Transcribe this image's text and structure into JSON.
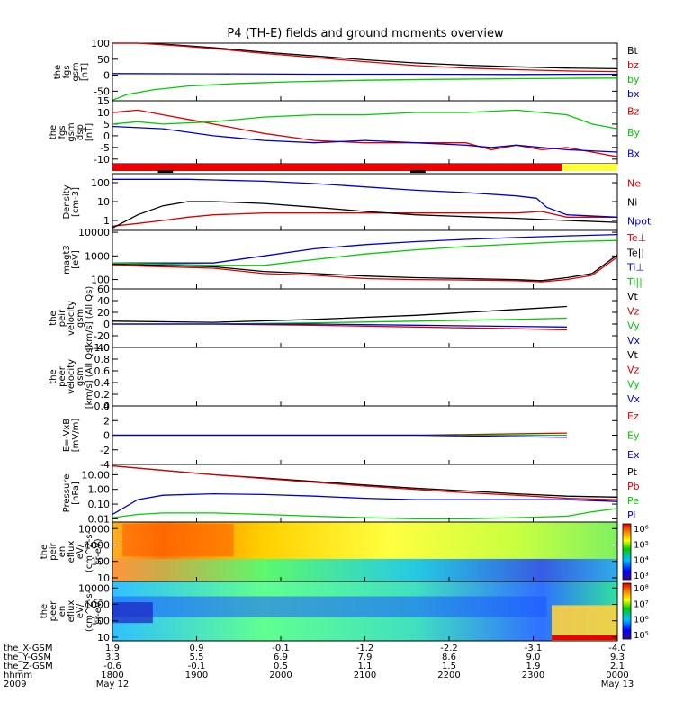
{
  "title": "P4 (TH-E) fields and ground moments overview",
  "chart_data": [
    {
      "type": "line",
      "ylabel": [
        "the",
        "fgs",
        "gsm",
        "[nT]"
      ],
      "ylim": [
        -80,
        100
      ],
      "yticks": [
        "100",
        "50",
        "0",
        "-50"
      ],
      "ytick_values": [
        100,
        50,
        0,
        -50
      ],
      "series": [
        {
          "name": "Bt",
          "color": "#000000",
          "x": [
            0,
            0.05,
            0.12,
            0.2,
            0.3,
            0.4,
            0.5,
            0.6,
            0.7,
            0.8,
            0.9,
            1.0
          ],
          "y": [
            118,
            105,
            95,
            86,
            72,
            60,
            48,
            38,
            31,
            26,
            22,
            20
          ]
        },
        {
          "name": "bz",
          "color": "#dd0000",
          "x": [
            0,
            0.05,
            0.12,
            0.2,
            0.3,
            0.4,
            0.5,
            0.6,
            0.7,
            0.8,
            0.9,
            1.0
          ],
          "y": [
            118,
            104,
            93,
            83,
            68,
            55,
            42,
            30,
            22,
            17,
            13,
            11
          ]
        },
        {
          "name": "by",
          "color": "#00cc00",
          "x": [
            0,
            0.03,
            0.08,
            0.15,
            0.25,
            0.35,
            0.5,
            0.65,
            0.8,
            0.9,
            1.0
          ],
          "y": [
            -78,
            -60,
            -46,
            -34,
            -26,
            -21,
            -16,
            -13,
            -11,
            -10,
            -9
          ]
        },
        {
          "name": "bx",
          "color": "#0000cc",
          "x": [
            0,
            0.2,
            0.4,
            0.6,
            0.8,
            1.0
          ],
          "y": [
            5,
            4,
            3,
            3,
            2,
            3
          ]
        }
      ]
    },
    {
      "type": "line",
      "ylabel": [
        "the",
        "fgs",
        "gsm",
        "dsp",
        "[nT]"
      ],
      "ylim": [
        -12,
        15
      ],
      "yticks": [
        "15",
        "10",
        "5",
        "0",
        "-5",
        "-10"
      ],
      "ytick_values": [
        15,
        10,
        5,
        0,
        -5,
        -10
      ],
      "series": [
        {
          "name": "Bz",
          "color": "#dd0000",
          "x": [
            0,
            0.05,
            0.1,
            0.15,
            0.2,
            0.3,
            0.4,
            0.5,
            0.6,
            0.7,
            0.75,
            0.8,
            0.85,
            0.9,
            0.95,
            1.0
          ],
          "y": [
            10,
            11,
            9,
            7,
            5,
            1,
            -2,
            -3,
            -3,
            -3,
            -6,
            -4,
            -6,
            -5,
            -7,
            -9
          ]
        },
        {
          "name": "By",
          "color": "#00cc00",
          "x": [
            0,
            0.05,
            0.1,
            0.2,
            0.3,
            0.4,
            0.5,
            0.6,
            0.7,
            0.8,
            0.85,
            0.9,
            0.95,
            1.0
          ],
          "y": [
            5,
            6,
            5,
            6,
            8,
            9,
            9,
            10,
            10,
            11,
            10,
            9,
            5,
            3
          ]
        },
        {
          "name": "Bx",
          "color": "#0000cc",
          "x": [
            0,
            0.1,
            0.2,
            0.3,
            0.4,
            0.5,
            0.6,
            0.7,
            0.75,
            0.8,
            0.85,
            0.9,
            1.0
          ],
          "y": [
            4,
            3,
            0,
            -2,
            -3,
            -2,
            -3,
            -4,
            -5,
            -4,
            -5,
            -6,
            -7
          ]
        }
      ]
    },
    {
      "type": "line",
      "yscale": "log",
      "ylabel": [
        "Density",
        "[cm-3]"
      ],
      "ylim": [
        0.3,
        300
      ],
      "yticks": [
        "100",
        "10",
        "1"
      ],
      "ytick_values": [
        100,
        10,
        1
      ],
      "series": [
        {
          "name": "Ne",
          "color": "#dd0000",
          "x": [
            0,
            0.05,
            0.1,
            0.15,
            0.2,
            0.3,
            0.4,
            0.5,
            0.6,
            0.7,
            0.8,
            0.85,
            0.9,
            1.0
          ],
          "y": [
            0.5,
            0.7,
            1,
            1.5,
            2,
            2.5,
            2.5,
            2.5,
            2.5,
            2.5,
            2.5,
            3,
            1.5,
            1.5
          ]
        },
        {
          "name": "Ni",
          "color": "#000000",
          "x": [
            0,
            0.05,
            0.1,
            0.15,
            0.2,
            0.3,
            0.4,
            0.5,
            0.6,
            0.7,
            0.8,
            0.9,
            1.0
          ],
          "y": [
            0.4,
            2,
            6,
            10,
            10,
            8,
            5,
            3,
            2,
            1.6,
            1.3,
            1.0,
            0.8
          ]
        },
        {
          "name": "Npot",
          "color": "#0000cc",
          "x": [
            0,
            0.1,
            0.15,
            0.2,
            0.3,
            0.4,
            0.5,
            0.6,
            0.7,
            0.8,
            0.84,
            0.86,
            0.9,
            1.0
          ],
          "y": [
            150,
            150,
            150,
            140,
            120,
            90,
            60,
            40,
            30,
            20,
            15,
            5,
            2,
            1.5
          ]
        }
      ]
    },
    {
      "type": "line",
      "yscale": "log",
      "ylabel": [
        "magt3",
        "[eV]"
      ],
      "ylim": [
        40,
        12000
      ],
      "yticks": [
        "10000",
        "1000",
        "100"
      ],
      "ytick_values": [
        10000,
        1000,
        100
      ],
      "series": [
        {
          "name": "Te⊥",
          "color": "#dd0000",
          "x": [
            0,
            0.1,
            0.2,
            0.3,
            0.4,
            0.5,
            0.6,
            0.7,
            0.8,
            0.85,
            0.9,
            0.95,
            1.0
          ],
          "y": [
            400,
            350,
            300,
            180,
            150,
            110,
            100,
            95,
            90,
            80,
            100,
            150,
            900
          ]
        },
        {
          "name": "Te||",
          "color": "#000000",
          "x": [
            0,
            0.1,
            0.2,
            0.3,
            0.4,
            0.5,
            0.6,
            0.7,
            0.8,
            0.85,
            0.9,
            0.95,
            1.0
          ],
          "y": [
            450,
            400,
            350,
            220,
            180,
            140,
            120,
            110,
            100,
            90,
            120,
            180,
            1100
          ]
        },
        {
          "name": "Ti⊥",
          "color": "#0000cc",
          "x": [
            0,
            0.1,
            0.2,
            0.3,
            0.4,
            0.5,
            0.6,
            0.7,
            0.8,
            0.9,
            1.0
          ],
          "y": [
            500,
            500,
            500,
            1000,
            2000,
            3000,
            4000,
            5000,
            6000,
            7000,
            8000
          ]
        },
        {
          "name": "Ti||",
          "color": "#00cc00",
          "x": [
            0,
            0.1,
            0.2,
            0.3,
            0.4,
            0.5,
            0.6,
            0.7,
            0.8,
            0.9,
            1.0
          ],
          "y": [
            500,
            450,
            400,
            400,
            700,
            1200,
            1800,
            2500,
            3200,
            4000,
            4500
          ]
        }
      ]
    },
    {
      "type": "line",
      "ylabel": [
        "the",
        "peir",
        "velocity",
        "gsm",
        "[km/s] (All Qs)"
      ],
      "ylim": [
        -40,
        60
      ],
      "yticks": [
        "60",
        "40",
        "20",
        "0",
        "-20",
        "-40"
      ],
      "ytick_values": [
        60,
        40,
        20,
        0,
        -20,
        -40
      ],
      "series": [
        {
          "name": "Vt",
          "color": "#000000",
          "x": [
            0,
            0.2,
            0.4,
            0.6,
            0.8,
            0.9
          ],
          "y": [
            5,
            3,
            8,
            15,
            25,
            30
          ]
        },
        {
          "name": "Vz",
          "color": "#dd0000",
          "x": [
            0,
            0.2,
            0.4,
            0.6,
            0.8,
            0.9
          ],
          "y": [
            0,
            0,
            -2,
            -5,
            -8,
            -10
          ]
        },
        {
          "name": "Vy",
          "color": "#00cc00",
          "x": [
            0,
            0.2,
            0.4,
            0.6,
            0.8,
            0.9
          ],
          "y": [
            0,
            0,
            2,
            5,
            8,
            10
          ]
        },
        {
          "name": "Vx",
          "color": "#0000cc",
          "x": [
            0,
            0.2,
            0.4,
            0.6,
            0.8,
            0.9
          ],
          "y": [
            0,
            0,
            0,
            -2,
            -4,
            -5
          ]
        }
      ]
    },
    {
      "type": "line",
      "ylabel": [
        "the",
        "peer",
        "velocity",
        "gsm",
        "[km/s] (All Qs)"
      ],
      "ylim": [
        0,
        1
      ],
      "yticks": [
        "1.0",
        "0.8",
        "0.6",
        "0.4",
        "0.2",
        "0.0"
      ],
      "ytick_values": [
        1.0,
        0.8,
        0.6,
        0.4,
        0.2,
        0.0
      ],
      "series": [
        {
          "name": "Vt",
          "color": "#000000",
          "x": [],
          "y": []
        },
        {
          "name": "Vz",
          "color": "#dd0000",
          "x": [],
          "y": []
        },
        {
          "name": "Vy",
          "color": "#00cc00",
          "x": [],
          "y": []
        },
        {
          "name": "Vx",
          "color": "#0000cc",
          "x": [],
          "y": []
        }
      ]
    },
    {
      "type": "line",
      "ylabel": [
        "E=-VxB",
        "[mV/m]"
      ],
      "ylim": [
        -4,
        4
      ],
      "yticks": [
        "4",
        "2",
        "0",
        "-2",
        "-4"
      ],
      "ytick_values": [
        4,
        2,
        0,
        -2,
        -4
      ],
      "series": [
        {
          "name": "Ez",
          "color": "#dd0000",
          "x": [
            0,
            0.1,
            0.2,
            0.4,
            0.6,
            0.8,
            0.9
          ],
          "y": [
            0,
            0,
            0,
            0,
            0,
            0.2,
            0.3
          ]
        },
        {
          "name": "Ey",
          "color": "#00cc00",
          "x": [
            0,
            0.1,
            0.2,
            0.4,
            0.6,
            0.8,
            0.9
          ],
          "y": [
            0,
            0,
            0,
            0,
            0,
            0,
            0
          ]
        },
        {
          "name": "Ex",
          "color": "#0000cc",
          "x": [
            0,
            0.1,
            0.2,
            0.4,
            0.6,
            0.8,
            0.9
          ],
          "y": [
            0,
            0,
            0,
            0,
            0,
            -0.2,
            -0.3
          ]
        }
      ]
    },
    {
      "type": "line",
      "yscale": "log",
      "ylabel": [
        "Pressure",
        "[nPa]"
      ],
      "ylim": [
        0.006,
        50
      ],
      "yticks": [
        "10.00",
        "1.00",
        "0.10",
        "0.01"
      ],
      "ytick_values": [
        10,
        1,
        0.1,
        0.01
      ],
      "series": [
        {
          "name": "Pt",
          "color": "#000000",
          "x": [
            0,
            0.1,
            0.2,
            0.3,
            0.4,
            0.5,
            0.6,
            0.7,
            0.8,
            0.9,
            1.0
          ],
          "y": [
            40,
            20,
            10,
            6,
            3.5,
            2,
            1.2,
            0.8,
            0.5,
            0.35,
            0.3
          ]
        },
        {
          "name": "Pb",
          "color": "#dd0000",
          "x": [
            0,
            0.1,
            0.2,
            0.3,
            0.4,
            0.5,
            0.6,
            0.7,
            0.8,
            0.9,
            1.0
          ],
          "y": [
            40,
            20,
            10,
            5.5,
            3,
            1.7,
            1.0,
            0.6,
            0.4,
            0.25,
            0.2
          ]
        },
        {
          "name": "Pe",
          "color": "#00cc00",
          "x": [
            0,
            0.05,
            0.1,
            0.2,
            0.3,
            0.4,
            0.5,
            0.6,
            0.7,
            0.8,
            0.9,
            0.95,
            1.0
          ],
          "y": [
            0.012,
            0.02,
            0.025,
            0.025,
            0.02,
            0.015,
            0.012,
            0.01,
            0.01,
            0.012,
            0.015,
            0.03,
            0.05
          ]
        },
        {
          "name": "Pi",
          "color": "#0000cc",
          "x": [
            0,
            0.05,
            0.1,
            0.2,
            0.3,
            0.4,
            0.5,
            0.6,
            0.7,
            0.8,
            0.9,
            1.0
          ],
          "y": [
            0.02,
            0.2,
            0.4,
            0.5,
            0.45,
            0.35,
            0.25,
            0.2,
            0.2,
            0.2,
            0.2,
            0.15
          ]
        }
      ]
    },
    {
      "type": "heatmap",
      "ylabel": [
        "the",
        "peir",
        "en",
        "eflux",
        "eV/",
        "(cm^2-s-",
        "sr-eV)"
      ],
      "yscale": "log",
      "ylim": [
        6,
        25000
      ],
      "yticks": [
        "10000",
        "1000",
        "100",
        "10"
      ],
      "ytick_values": [
        10000,
        1000,
        100,
        10
      ],
      "colorbar_ticks": [
        "10^6",
        "10^5",
        "10^4",
        "10^3"
      ],
      "colorbar_values": [
        1000000,
        100000,
        10000,
        1000
      ],
      "colorbar_range": [
        500,
        2000000
      ]
    },
    {
      "type": "heatmap",
      "ylabel": [
        "the",
        "peer",
        "en",
        "eflux",
        "eV/",
        "(cm^2-s-",
        "sr-eV)"
      ],
      "yscale": "log",
      "ylim": [
        6,
        25000
      ],
      "yticks": [
        "10000",
        "1000",
        "100",
        "10"
      ],
      "ytick_values": [
        10000,
        1000,
        100,
        10
      ],
      "colorbar_ticks": [
        "10^8",
        "10^7",
        "10^6",
        "10^5"
      ],
      "colorbar_values": [
        100000000,
        10000000,
        1000000,
        100000
      ],
      "colorbar_range": [
        50000,
        200000000
      ]
    }
  ],
  "x_axis": {
    "labels": [
      "the_X-GSM",
      "the_Y-GSM",
      "the_Z-GSM",
      "hhmm",
      "2009"
    ],
    "ticks": [
      {
        "lines": [
          "1.9",
          "3.3",
          "-0.6",
          "1800",
          "May 12"
        ]
      },
      {
        "lines": [
          "0.9",
          "5.5",
          "-0.1",
          "1900",
          ""
        ]
      },
      {
        "lines": [
          "-0.1",
          "6.9",
          "0.5",
          "2000",
          ""
        ]
      },
      {
        "lines": [
          "-1.2",
          "7.9",
          "1.1",
          "2100",
          ""
        ]
      },
      {
        "lines": [
          "-2.2",
          "8.6",
          "1.5",
          "2200",
          ""
        ]
      },
      {
        "lines": [
          "-3.1",
          "9.0",
          "1.9",
          "2300",
          ""
        ]
      },
      {
        "lines": [
          "-4.0",
          "9.3",
          "2.1",
          "0000",
          "May 13"
        ]
      }
    ]
  },
  "mode_bar": {
    "segments": [
      {
        "from": 0.0,
        "to": 0.89,
        "color": "#ee0000"
      },
      {
        "from": 0.89,
        "to": 1.0,
        "color": "#ffff33"
      }
    ],
    "marks": [
      {
        "from": 0.09,
        "to": 0.12
      },
      {
        "from": 0.59,
        "to": 0.62
      }
    ]
  }
}
